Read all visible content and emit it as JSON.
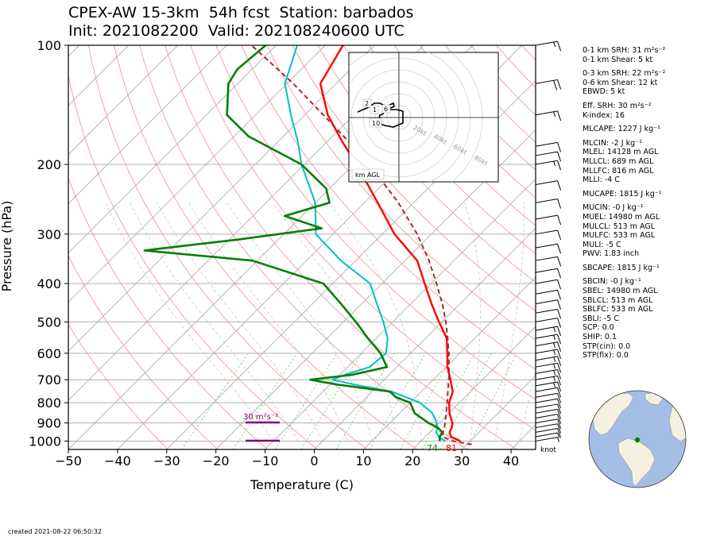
{
  "title": {
    "line1": "CPEX-AW 15-3km  54h fcst  Station: barbados",
    "line2": "Init: 2021082200  Valid: 202108240600 UTC"
  },
  "created": "created 2021-08-22 06:50:32",
  "indices": [
    {
      "text": "0-1 km SRH: 31 m²s⁻²",
      "gap": false
    },
    {
      "text": "0-1 km Shear: 5 kt",
      "gap": false
    },
    {
      "text": "0-3 km SRH: 22 m²s⁻²",
      "gap": true
    },
    {
      "text": "0-6 km Shear: 12 kt",
      "gap": false
    },
    {
      "text": "EBWD: 5 kt",
      "gap": false
    },
    {
      "text": "Eff. SRH: 30 m²s⁻²",
      "gap": true
    },
    {
      "text": "K-index: 16",
      "gap": false
    },
    {
      "text": "MLCAPE: 1227 J kg⁻¹",
      "gap": true
    },
    {
      "text": "MLCIN: -2 J kg⁻¹",
      "gap": true
    },
    {
      "text": "MLEL: 14128 m AGL",
      "gap": false
    },
    {
      "text": "MLLCL: 689 m AGL",
      "gap": false
    },
    {
      "text": "MLLFC: 816 m AGL",
      "gap": false
    },
    {
      "text": "MLLI: -4 C",
      "gap": false
    },
    {
      "text": "MUCAPE: 1815 J kg⁻¹",
      "gap": true
    },
    {
      "text": "MUCIN: -0 J kg⁻¹",
      "gap": true
    },
    {
      "text": "MUEL: 14980 m AGL",
      "gap": false
    },
    {
      "text": "MULCL: 513 m AGL",
      "gap": false
    },
    {
      "text": "MULFC: 533 m AGL",
      "gap": false
    },
    {
      "text": "MULI: -5 C",
      "gap": false
    },
    {
      "text": "PWV: 1.83 inch",
      "gap": false
    },
    {
      "text": "SBCAPE: 1815 J kg⁻¹",
      "gap": true
    },
    {
      "text": "SBCIN: -0 J kg⁻¹",
      "gap": true
    },
    {
      "text": "SBEL: 14980 m AGL",
      "gap": false
    },
    {
      "text": "SBLCL: 513 m AGL",
      "gap": false
    },
    {
      "text": "SBLFC: 533 m AGL",
      "gap": false
    },
    {
      "text": "SBLI: -5 C",
      "gap": false
    },
    {
      "text": "SCP: 0.0",
      "gap": false
    },
    {
      "text": "SHIP: 0.1",
      "gap": false
    },
    {
      "text": "STP(cin): 0.0",
      "gap": false
    },
    {
      "text": "STP(fix): 0.0",
      "gap": false
    }
  ],
  "chart_data": {
    "type": "line",
    "subtype": "skew-T log-P sounding",
    "xlabel": "Temperature (C)",
    "ylabel": "Pressure (hPa)",
    "xlim": [
      -50,
      45
    ],
    "ylim": [
      1050,
      100
    ],
    "yscale": "log",
    "x_ticks": [
      -50,
      -40,
      -30,
      -20,
      -10,
      0,
      10,
      20,
      30,
      40
    ],
    "y_ticks": [
      1000,
      900,
      800,
      700,
      600,
      500,
      400,
      300,
      200,
      100
    ],
    "grid": true,
    "colors": {
      "temperature": "#ff0000",
      "dewpoint": "#008000",
      "virtual_temperature": "#00bfc4",
      "parcel": "#a52a2a",
      "srh_bar": "#800080",
      "isotherm": "#b5b5b5",
      "dry_adiabat": "#f4a3a3",
      "moist_adiabat": "#c8c8c8",
      "mixing_ratio": "#7cc47c"
    },
    "series": [
      {
        "name": "temperature",
        "p": [
          1000,
          975,
          950,
          925,
          900,
          850,
          800,
          750,
          700,
          650,
          600,
          550,
          500,
          450,
          400,
          350,
          300,
          250,
          200,
          175,
          150,
          125,
          100
        ],
        "t": [
          28.0,
          25.2,
          24.0,
          23.5,
          22.7,
          20.1,
          17.9,
          16.4,
          13.5,
          10.3,
          7.5,
          4.3,
          -0.6,
          -5.8,
          -11.3,
          -17.5,
          -27.5,
          -37.3,
          -49.4,
          -57.0,
          -65.3,
          -73.2,
          -76.4
        ]
      },
      {
        "name": "dewpoint",
        "p": [
          1000,
          975,
          950,
          925,
          900,
          850,
          800,
          775,
          750,
          720,
          700,
          680,
          650,
          600,
          550,
          500,
          450,
          400,
          350,
          330,
          310,
          290,
          270,
          250,
          230,
          200,
          170,
          150,
          125,
          115,
          100
        ],
        "t": [
          23.8,
          22.9,
          22.5,
          20.7,
          17.8,
          13.0,
          10.0,
          6.0,
          3.7,
          -8.5,
          -15.0,
          -7.5,
          -2.0,
          -6.1,
          -11.7,
          -17.5,
          -24.2,
          -31.9,
          -51.0,
          -75.0,
          -58.5,
          -43.5,
          -53.5,
          -47.1,
          -50.7,
          -60.6,
          -77.0,
          -85.8,
          -91.9,
          -93.0,
          -92.1
        ]
      },
      {
        "name": "virtual_temperature",
        "p": [
          1000,
          975,
          950,
          925,
          900,
          850,
          800,
          750,
          720,
          700,
          680,
          650,
          600,
          550,
          500,
          450,
          400,
          350,
          300,
          250,
          200,
          175,
          150,
          125,
          100
        ],
        "t": [
          24.9,
          22.7,
          21.3,
          20.5,
          19.5,
          16.6,
          12.0,
          4.0,
          -5.0,
          -10.5,
          -9.0,
          -5.5,
          -5.0,
          -7.7,
          -11.9,
          -16.9,
          -22.4,
          -33.0,
          -43.5,
          -50.0,
          -60.6,
          -66.0,
          -72.8,
          -80.4,
          -85.7
        ]
      },
      {
        "name": "parcel",
        "p": [
          1020,
          1000,
          975,
          950,
          925,
          900,
          850,
          800,
          750,
          700,
          650,
          600,
          550,
          500,
          450,
          400,
          350,
          300,
          250,
          200,
          175,
          150,
          125,
          100
        ],
        "t": [
          31.0,
          26.4,
          23.5,
          22.7,
          22.0,
          21.2,
          19.4,
          17.5,
          15.4,
          13.2,
          10.6,
          7.8,
          4.5,
          0.8,
          -3.6,
          -8.9,
          -15.1,
          -22.9,
          -33.1,
          -46.8,
          -55.7,
          -66.2,
          -78.7,
          -95.0
        ]
      }
    ],
    "annotations": {
      "surface_temperature_label": "81",
      "surface_dewpoint_label": "74",
      "srh_label": "30 m²s⁻²",
      "barb_unit": "knot"
    },
    "wind_barbs": {
      "p": [
        1000,
        975,
        950,
        925,
        900,
        875,
        850,
        825,
        800,
        775,
        750,
        725,
        700,
        675,
        650,
        625,
        600,
        575,
        550,
        525,
        500,
        475,
        450,
        425,
        400,
        375,
        350,
        325,
        300,
        275,
        250,
        225,
        200,
        190,
        180,
        150,
        125,
        100
      ],
      "speed_kt": [
        5,
        5,
        10,
        10,
        10,
        10,
        10,
        10,
        10,
        10,
        10,
        15,
        15,
        15,
        15,
        15,
        15,
        15,
        15,
        15,
        10,
        10,
        10,
        10,
        10,
        10,
        10,
        10,
        10,
        10,
        10,
        10,
        15,
        10,
        10,
        15,
        20,
        15
      ]
    },
    "hodograph": {
      "label": "km AGL",
      "ring_labels": [
        "20kt",
        "40kt",
        "60kt",
        "80kt"
      ],
      "height_labels": [
        "2",
        "1",
        "6",
        "10"
      ]
    },
    "globe_marker": "barbados"
  }
}
